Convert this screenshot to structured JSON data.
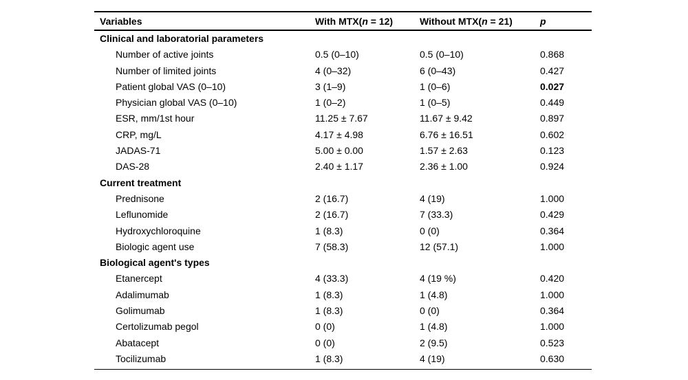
{
  "table": {
    "header": {
      "variables": "Variables",
      "with_mtx": {
        "pre": "With MTX(",
        "n": "n",
        "post": " = 12)"
      },
      "without_mtx": {
        "pre": "Without MTX(",
        "n": "n",
        "post": " = 21)"
      },
      "p": "p"
    },
    "rows": [
      {
        "type": "section",
        "label": "Clinical and laboratorial parameters",
        "with_mtx": "",
        "without_mtx": "",
        "p": ""
      },
      {
        "type": "item",
        "label": "Number of active joints",
        "with_mtx": "0.5 (0–10)",
        "without_mtx": "0.5 (0–10)",
        "p": "0.868"
      },
      {
        "type": "item",
        "label": "Number of limited joints",
        "with_mtx": "4 (0–32)",
        "without_mtx": "6 (0–43)",
        "p": "0.427"
      },
      {
        "type": "item",
        "label": "Patient global VAS (0–10)",
        "with_mtx": "3 (1–9)",
        "without_mtx": "1 (0–6)",
        "p": "0.027",
        "p_bold": true
      },
      {
        "type": "item",
        "label": "Physician global VAS (0–10)",
        "with_mtx": "1 (0–2)",
        "without_mtx": "1 (0–5)",
        "p": "0.449"
      },
      {
        "type": "item",
        "label": "ESR, mm/1st hour",
        "with_mtx": "11.25 ± 7.67",
        "without_mtx": "11.67 ± 9.42",
        "p": "0.897"
      },
      {
        "type": "item",
        "label": "CRP, mg/L",
        "with_mtx": "4.17 ± 4.98",
        "without_mtx": "6.76 ± 16.51",
        "p": "0.602"
      },
      {
        "type": "item",
        "label": "JADAS-71",
        "with_mtx": "5.00 ± 0.00",
        "without_mtx": "1.57 ± 2.63",
        "p": "0.123"
      },
      {
        "type": "item",
        "label": "DAS-28",
        "with_mtx": "2.40 ± 1.17",
        "without_mtx": "2.36 ± 1.00",
        "p": "0.924"
      },
      {
        "type": "section",
        "label": "Current treatment",
        "with_mtx": "",
        "without_mtx": "",
        "p": ""
      },
      {
        "type": "item",
        "label": "Prednisone",
        "with_mtx": "2 (16.7)",
        "without_mtx": "4 (19)",
        "p": "1.000"
      },
      {
        "type": "item",
        "label": "Leflunomide",
        "with_mtx": "2 (16.7)",
        "without_mtx": "7 (33.3)",
        "p": "0.429"
      },
      {
        "type": "item",
        "label": "Hydroxychloroquine",
        "with_mtx": "1 (8.3)",
        "without_mtx": "0 (0)",
        "p": "0.364"
      },
      {
        "type": "item",
        "label": "Biologic agent use",
        "with_mtx": "7 (58.3)",
        "without_mtx": "12 (57.1)",
        "p": "1.000"
      },
      {
        "type": "section",
        "label": "Biological agent's types",
        "with_mtx": "",
        "without_mtx": "",
        "p": ""
      },
      {
        "type": "item",
        "label": "Etanercept",
        "with_mtx": "4 (33.3)",
        "without_mtx": "4 (19 %)",
        "p": "0.420"
      },
      {
        "type": "item",
        "label": "Adalimumab",
        "with_mtx": "1 (8.3)",
        "without_mtx": "1 (4.8)",
        "p": "1.000"
      },
      {
        "type": "item",
        "label": "Golimumab",
        "with_mtx": "1 (8.3)",
        "without_mtx": "0 (0)",
        "p": "0.364"
      },
      {
        "type": "item",
        "label": "Certolizumab pegol",
        "with_mtx": "0 (0)",
        "without_mtx": "1 (4.8)",
        "p": "1.000"
      },
      {
        "type": "item",
        "label": "Abatacept",
        "with_mtx": "0 (0)",
        "without_mtx": "2 (9.5)",
        "p": "0.523"
      },
      {
        "type": "item",
        "label": "Tocilizumab",
        "with_mtx": "1 (8.3)",
        "without_mtx": "4 (19)",
        "p": "0.630"
      }
    ]
  }
}
